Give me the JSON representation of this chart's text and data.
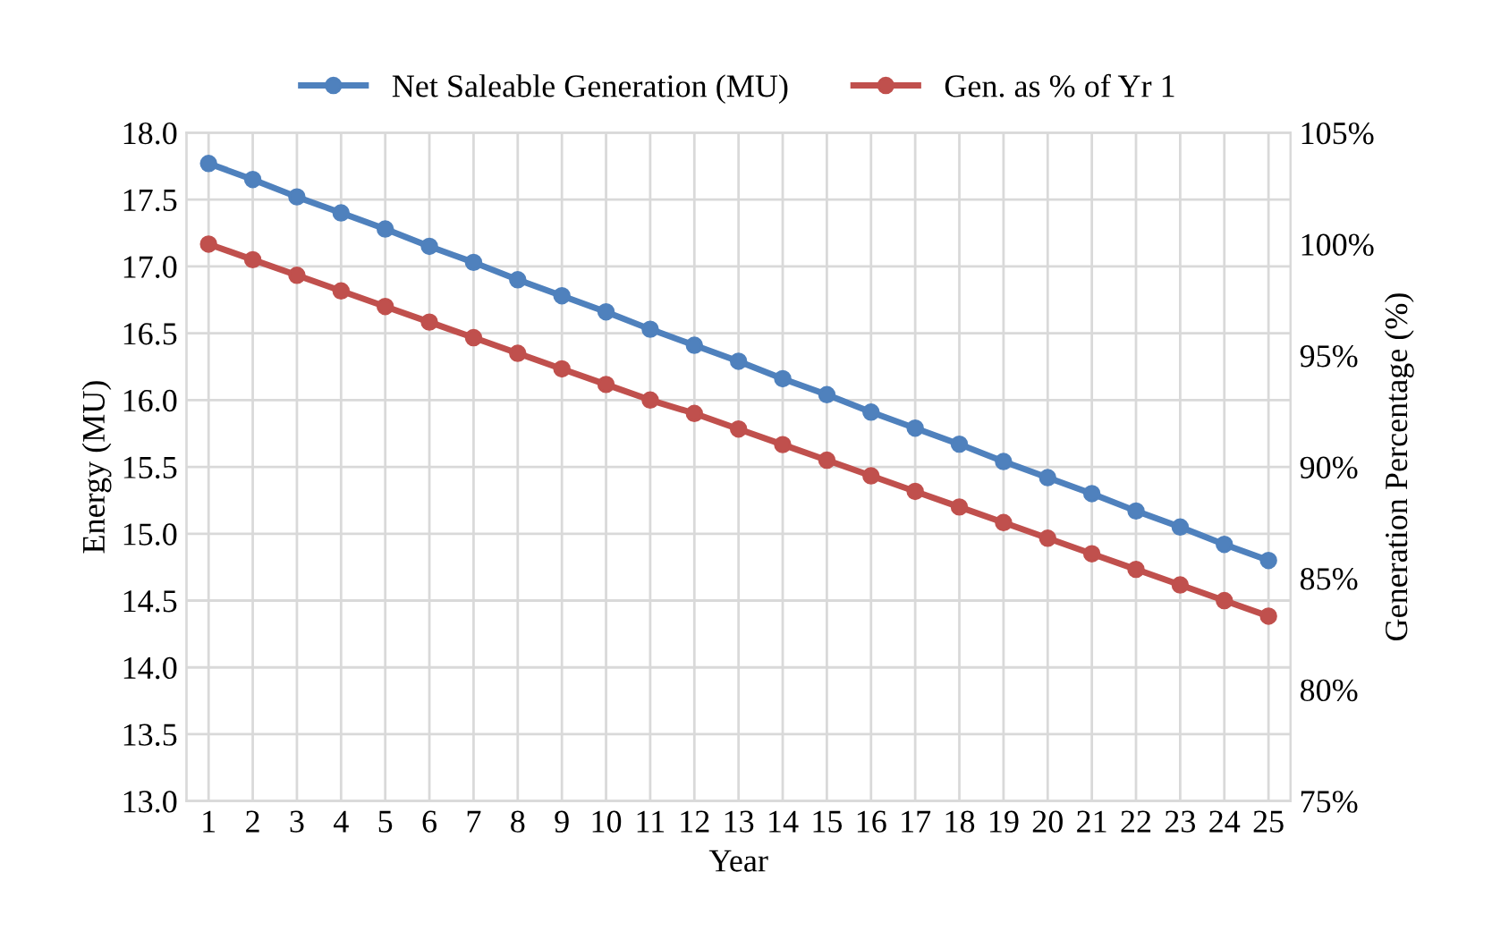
{
  "chart_data": {
    "type": "line",
    "xlabel": "Year",
    "ylabel": "Energy (MU)",
    "y2label": "Generation Percentage (%)",
    "categories": [
      "1",
      "2",
      "3",
      "4",
      "5",
      "6",
      "7",
      "8",
      "9",
      "10",
      "11",
      "12",
      "13",
      "14",
      "15",
      "16",
      "17",
      "18",
      "19",
      "20",
      "21",
      "22",
      "23",
      "24",
      "25"
    ],
    "series": [
      {
        "name": "Net Saleable Generation (MU)",
        "color": "#4f81bd",
        "values": [
          17.77,
          17.65,
          17.52,
          17.4,
          17.28,
          17.15,
          17.03,
          16.9,
          16.78,
          16.66,
          16.53,
          16.41,
          16.29,
          16.16,
          16.04,
          15.91,
          15.79,
          15.67,
          15.54,
          15.42,
          15.3,
          15.17,
          15.05,
          14.92,
          14.8
        ]
      },
      {
        "name": "Gen. as % of Yr 1",
        "color": "#c0504d",
        "axis": "y2",
        "values": [
          100,
          99.3,
          98.6,
          97.9,
          97.2,
          96.5,
          95.8,
          95.1,
          94.4,
          93.7,
          93.0,
          92.4,
          91.7,
          91.0,
          90.3,
          89.6,
          88.9,
          88.2,
          87.5,
          86.8,
          86.1,
          85.4,
          84.7,
          84.0,
          83.3
        ]
      }
    ],
    "ylim": [
      13,
      18
    ],
    "yticks": [
      {
        "value": 13,
        "label": "13.0"
      },
      {
        "value": 13.5,
        "label": "13.5"
      },
      {
        "value": 14,
        "label": "14.0"
      },
      {
        "value": 14.5,
        "label": "14.5"
      },
      {
        "value": 15,
        "label": "15.0"
      },
      {
        "value": 15.5,
        "label": "15.5"
      },
      {
        "value": 16,
        "label": "16.0"
      },
      {
        "value": 16.5,
        "label": "16.5"
      },
      {
        "value": 17,
        "label": "17.0"
      },
      {
        "value": 17.5,
        "label": "17.5"
      },
      {
        "value": 18,
        "label": "18.0"
      }
    ],
    "y2lim": [
      75,
      105
    ],
    "y2ticks": [
      {
        "value": 75,
        "label": "75%"
      },
      {
        "value": 80,
        "label": "80%"
      },
      {
        "value": 85,
        "label": "85%"
      },
      {
        "value": 90,
        "label": "90%"
      },
      {
        "value": 95,
        "label": "95%"
      },
      {
        "value": 100,
        "label": "100%"
      },
      {
        "value": 105,
        "label": "105%"
      }
    ],
    "grid": true,
    "legend": "top",
    "marker": "circle",
    "line_style": "solid"
  }
}
